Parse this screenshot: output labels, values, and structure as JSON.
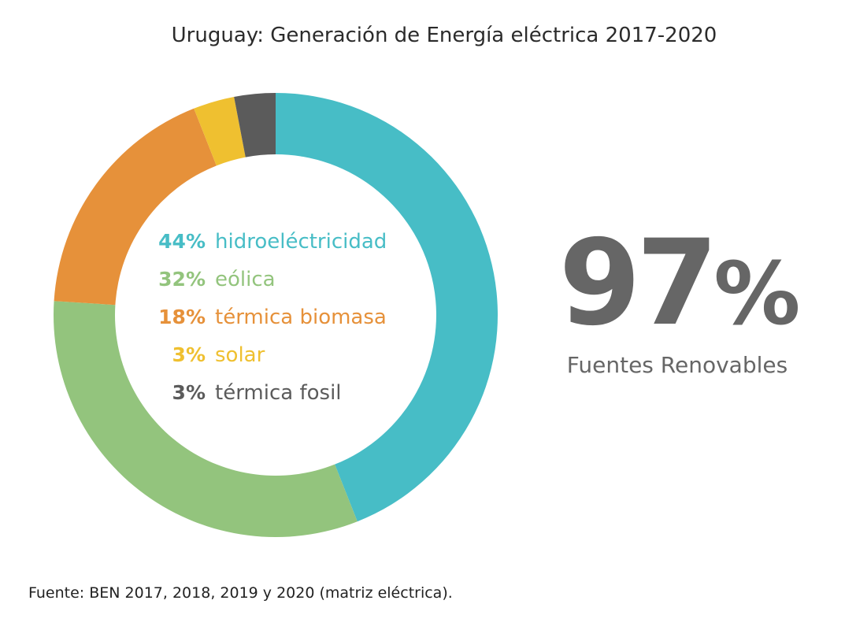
{
  "title": "Uruguay: Generación de Energía eléctrica 2017-2020",
  "chart_data": {
    "type": "pie",
    "variant": "donut",
    "categories": [
      "hidroeléctricidad",
      "eólica",
      "térmica biomasa",
      "solar",
      "térmica fosil"
    ],
    "values": [
      44,
      32,
      18,
      3,
      3
    ],
    "value_labels": [
      "44%",
      "32%",
      "18%",
      "3%",
      "3%"
    ],
    "colors": [
      "#47bdc6",
      "#93c47d",
      "#e6913a",
      "#efc030",
      "#5b5b5b"
    ]
  },
  "highlight": {
    "value": "97",
    "sign": "%",
    "label": "Fuentes Renovables",
    "color": "#666666"
  },
  "source": "Fuente: BEN 2017, 2018, 2019 y 2020 (matriz eléctrica)."
}
